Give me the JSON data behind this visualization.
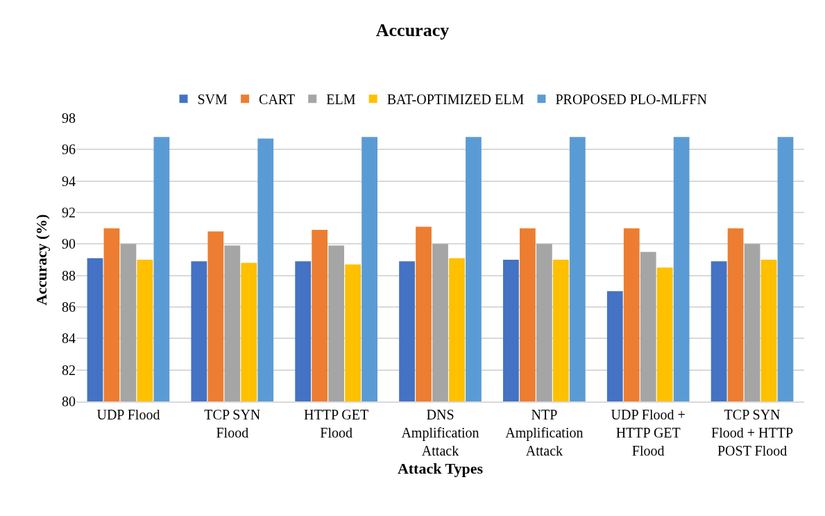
{
  "chart_data": {
    "type": "bar",
    "title": "Accuracy",
    "xlabel": "Attack Types",
    "ylabel": "Accuracy (%)",
    "categories": [
      "UDP Flood",
      "TCP SYN\nFlood",
      "HTTP GET\nFlood",
      "DNS\nAmplification\nAttack",
      "NTP\nAmplification\nAttack",
      "UDP Flood +\nHTTP GET\nFlood",
      "TCP SYN\nFlood + HTTP\nPOST Flood"
    ],
    "series": [
      {
        "name": "SVM",
        "color": "#4472c4",
        "values": [
          89.1,
          88.9,
          88.9,
          88.9,
          89.0,
          87.0,
          88.9
        ]
      },
      {
        "name": "CART",
        "color": "#ed7d31",
        "values": [
          91.0,
          90.8,
          90.9,
          91.1,
          91.0,
          91.0,
          91.0
        ]
      },
      {
        "name": "ELM",
        "color": "#a5a5a5",
        "values": [
          90.0,
          89.9,
          89.9,
          90.0,
          90.0,
          89.5,
          90.0
        ]
      },
      {
        "name": "BAT-OPTIMIZED ELM",
        "color": "#ffc000",
        "values": [
          89.0,
          88.8,
          88.7,
          89.1,
          89.0,
          88.5,
          89.0
        ]
      },
      {
        "name": "PROPOSED PLO-MLFFN",
        "color": "#5b9bd5",
        "values": [
          96.8,
          96.7,
          96.8,
          96.8,
          96.8,
          96.8,
          96.8
        ]
      }
    ],
    "ylim": [
      80,
      98
    ],
    "yticks": [
      80,
      82,
      84,
      86,
      88,
      90,
      92,
      94,
      96,
      98
    ],
    "grid": "y",
    "legend": "top"
  }
}
